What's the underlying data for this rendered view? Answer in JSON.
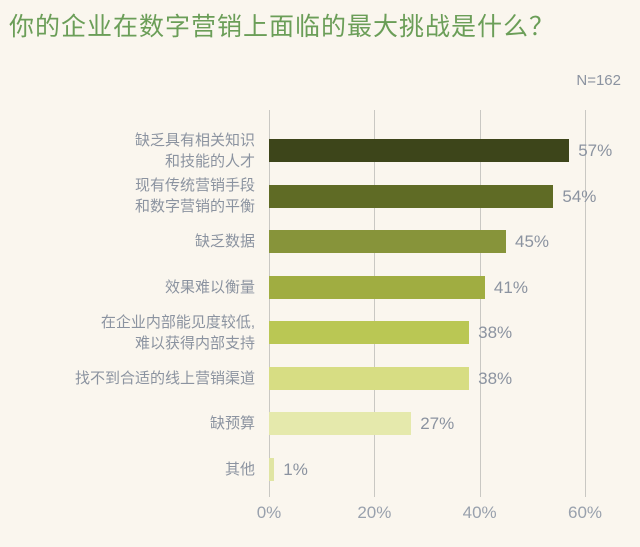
{
  "page": {
    "background_color": "#faf6ee",
    "title": "你的企业在数字营销上面临的最大挑战是什么？",
    "title_color": "#6b9e58",
    "sample_label": "N=162",
    "label_color": "#8b93a0"
  },
  "chart_data": {
    "type": "bar",
    "orientation": "horizontal",
    "title": "你的企业在数字营销上面临的最大挑战是什么？",
    "sample_size": "N=162",
    "xlabel": "",
    "ylabel": "",
    "xlim": [
      0,
      60
    ],
    "x_ticks": [
      "0%",
      "20%",
      "40%",
      "60%"
    ],
    "x_tick_values": [
      0,
      20,
      40,
      60
    ],
    "grid": true,
    "gridline_color": "#c9c8c3",
    "categories": [
      "缺乏具有相关知识和技能的人才",
      "现有传统营销手段和数字营销的平衡",
      "缺乏数据",
      "效果难以衡量",
      "在企业内部能见度较低,难以获得内部支持",
      "找不到合适的线上营销渠道",
      "缺预算",
      "其他"
    ],
    "values": [
      57,
      54,
      45,
      41,
      38,
      38,
      27,
      1
    ],
    "rows": [
      {
        "label_lines": [
          "缺乏具有相关知识",
          "和技能的人才"
        ],
        "value": 57,
        "value_label": "57%",
        "color": "#3d451a"
      },
      {
        "label_lines": [
          "现有传统营销手段",
          "和数字营销的平衡"
        ],
        "value": 54,
        "value_label": "54%",
        "color": "#5f6b25"
      },
      {
        "label_lines": [
          "缺乏数据"
        ],
        "value": 45,
        "value_label": "45%",
        "color": "#87943a"
      },
      {
        "label_lines": [
          "效果难以衡量"
        ],
        "value": 41,
        "value_label": "41%",
        "color": "#a0ad41"
      },
      {
        "label_lines": [
          "在企业内部能见度较低,",
          "难以获得内部支持"
        ],
        "value": 38,
        "value_label": "38%",
        "color": "#bac754"
      },
      {
        "label_lines": [
          "找不到合适的线上营销渠道"
        ],
        "value": 38,
        "value_label": "38%",
        "color": "#d7dd83"
      },
      {
        "label_lines": [
          "缺预算"
        ],
        "value": 27,
        "value_label": "27%",
        "color": "#e5e9ac"
      },
      {
        "label_lines": [
          "其他"
        ],
        "value": 1,
        "value_label": "1%",
        "color": "#e0e5a3"
      }
    ]
  }
}
